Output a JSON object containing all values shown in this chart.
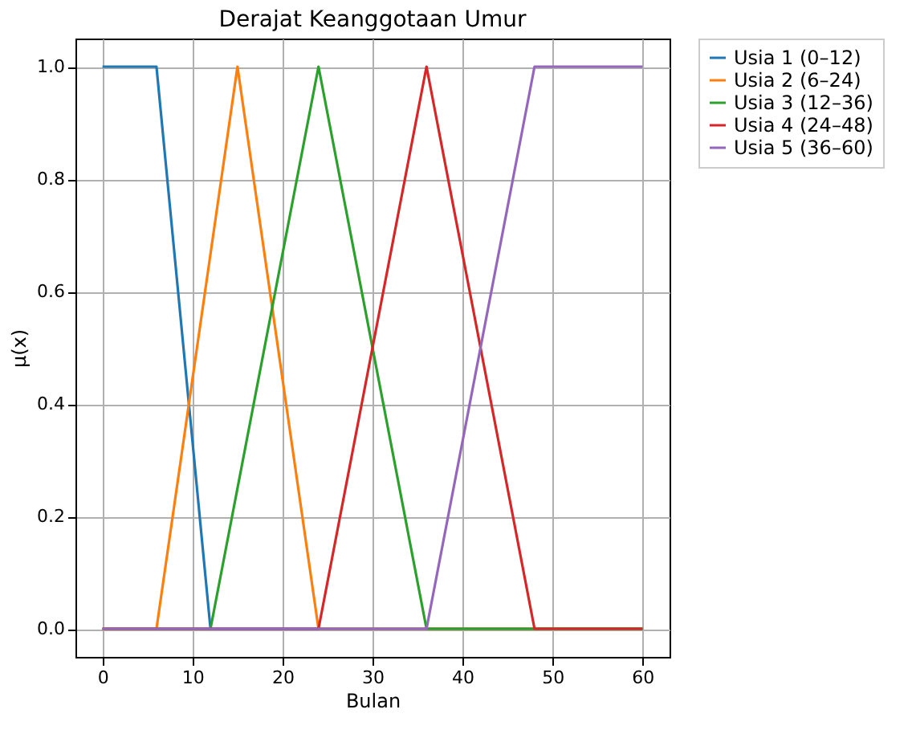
{
  "chart_data": {
    "type": "line",
    "title": "Derajat Keanggotaan Umur",
    "xlabel": "Bulan",
    "ylabel": "μ(x)",
    "series": [
      {
        "name": "Usia 1 (0–12)",
        "color": "#1f77b4",
        "x": [
          0,
          6,
          12,
          60
        ],
        "values": [
          1,
          1,
          0,
          0
        ]
      },
      {
        "name": "Usia 2 (6–24)",
        "color": "#ff7f0e",
        "x": [
          0,
          6,
          15,
          24,
          60
        ],
        "values": [
          0,
          0,
          1,
          0,
          0
        ]
      },
      {
        "name": "Usia 3 (12–36)",
        "color": "#2ca02c",
        "x": [
          0,
          12,
          24,
          36,
          60
        ],
        "values": [
          0,
          0,
          1,
          0,
          0
        ]
      },
      {
        "name": "Usia 4 (24–48)",
        "color": "#d62728",
        "x": [
          0,
          24,
          36,
          48,
          60
        ],
        "values": [
          0,
          0,
          1,
          0,
          0
        ]
      },
      {
        "name": "Usia 5 (36–60)",
        "color": "#9467bd",
        "x": [
          0,
          36,
          48,
          60
        ],
        "values": [
          0,
          0,
          1,
          1
        ]
      }
    ],
    "xlim": [
      -3,
      63
    ],
    "xticks": [
      0,
      10,
      20,
      30,
      40,
      50,
      60
    ],
    "ylim": [
      -0.05,
      1.05
    ],
    "yticks": [
      {
        "value": 0,
        "label": "0.0"
      },
      {
        "value": 0.2,
        "label": "0.2"
      },
      {
        "value": 0.4,
        "label": "0.4"
      },
      {
        "value": 0.6,
        "label": "0.6"
      },
      {
        "value": 0.8,
        "label": "0.8"
      },
      {
        "value": 1,
        "label": "1.0"
      }
    ],
    "grid": true,
    "legend": "right",
    "marker": "none",
    "line_style": "solid"
  }
}
